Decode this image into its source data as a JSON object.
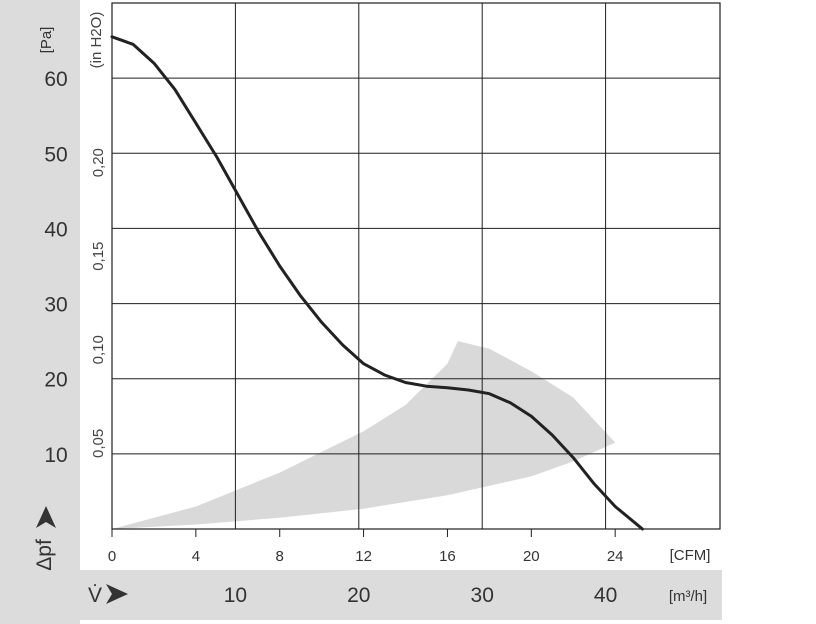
{
  "chart_data": {
    "type": "line",
    "title": "",
    "y_axis": {
      "unit_label": "[Pa]",
      "symbol": "Δpf",
      "ticks": [
        "10",
        "20",
        "30",
        "40",
        "50",
        "60"
      ],
      "range": [
        0,
        70
      ]
    },
    "y_axis_secondary": {
      "unit_label": "(in H2O)",
      "ticks": [
        "0,05",
        "0,10",
        "0,15",
        "0,20"
      ]
    },
    "x_axis_cfm": {
      "unit_label": "[CFM]",
      "ticks": [
        "0",
        "4",
        "8",
        "12",
        "16",
        "20",
        "24"
      ],
      "range": [
        0,
        29
      ]
    },
    "x_axis_m3h": {
      "unit_label": "[m³/h]",
      "symbol": "V̇",
      "ticks": [
        "10",
        "20",
        "30",
        "40"
      ]
    },
    "grid": true,
    "series": [
      {
        "x": [
          0,
          1,
          2,
          3,
          4,
          5,
          6,
          7,
          8,
          9,
          10,
          11,
          12,
          13,
          14,
          15,
          16,
          17,
          18,
          19,
          20,
          21,
          22,
          23,
          24,
          25.3
        ],
        "y": [
          65.5,
          64.5,
          62,
          58.5,
          54,
          49.5,
          44.5,
          39.5,
          35,
          31,
          27.5,
          24.5,
          22,
          20.5,
          19.5,
          19,
          18.8,
          18.5,
          18,
          16.8,
          15,
          12.5,
          9.5,
          6,
          3,
          0
        ]
      }
    ],
    "operating_range": {
      "upper_x": [
        0,
        4,
        8,
        12,
        14,
        16,
        16.5,
        18,
        20,
        22,
        24
      ],
      "upper_y": [
        0,
        3,
        7.5,
        13,
        16.5,
        22,
        25,
        24,
        21,
        17.5,
        11.5
      ],
      "lower_x": [
        24,
        22,
        20,
        16,
        12,
        8,
        4,
        0
      ],
      "lower_y": [
        11.5,
        9,
        7,
        4.5,
        2.7,
        1.5,
        0.6,
        0
      ]
    }
  },
  "colors": {
    "curve": "#222222",
    "grid": "#1f1f1f",
    "panel": "#dcdcdc",
    "operating_range": "#d9d9d9"
  }
}
